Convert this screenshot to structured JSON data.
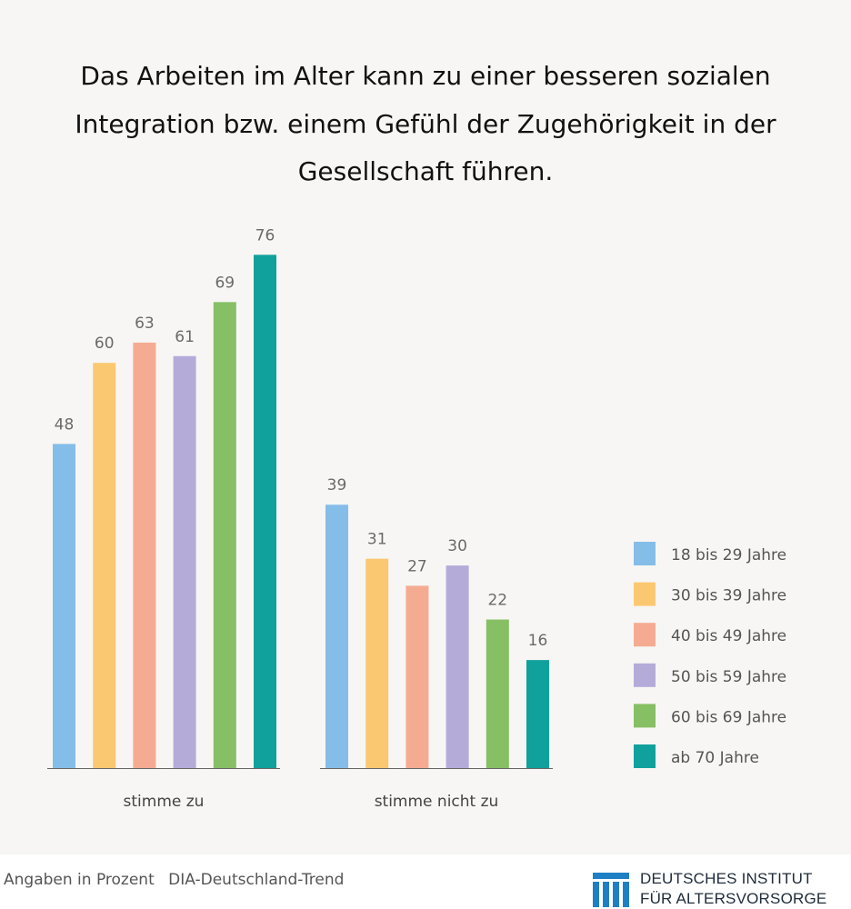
{
  "chart_data": {
    "type": "bar",
    "title": "Das Arbeiten im Alter kann zu einer besseren sozialen Integration bzw. einem Gefühl der Zugehörigkeit in der Gesellschaft führen.",
    "categories": [
      "stimme zu",
      "stimme nicht zu"
    ],
    "series": [
      {
        "name": "18 bis 29 Jahre",
        "color": "#85bde9",
        "values": [
          48,
          39
        ]
      },
      {
        "name": "30 bis 39 Jahre",
        "color": "#fbc872",
        "values": [
          60,
          31
        ]
      },
      {
        "name": "40 bis 49 Jahre",
        "color": "#f5ab92",
        "values": [
          63,
          27
        ]
      },
      {
        "name": "50 bis 59 Jahre",
        "color": "#b5abd9",
        "values": [
          61,
          30
        ]
      },
      {
        "name": "60 bis 69 Jahre",
        "color": "#86bf64",
        "values": [
          69,
          22
        ]
      },
      {
        "name": "ab 70 Jahre",
        "color": "#11a19c",
        "values": [
          76,
          16
        ]
      }
    ],
    "xlabel": "",
    "ylabel": "",
    "ylim": [
      0,
      80
    ],
    "grid": false,
    "legend_position": "right"
  },
  "footer": {
    "note": "Angaben in Prozent",
    "source": "DIA-Deutschland-Trend"
  },
  "logo": {
    "line1": "DEUTSCHES INSTITUT",
    "line2": "FÜR ALTERSVORSORGE",
    "color": "#1f7fc4"
  }
}
